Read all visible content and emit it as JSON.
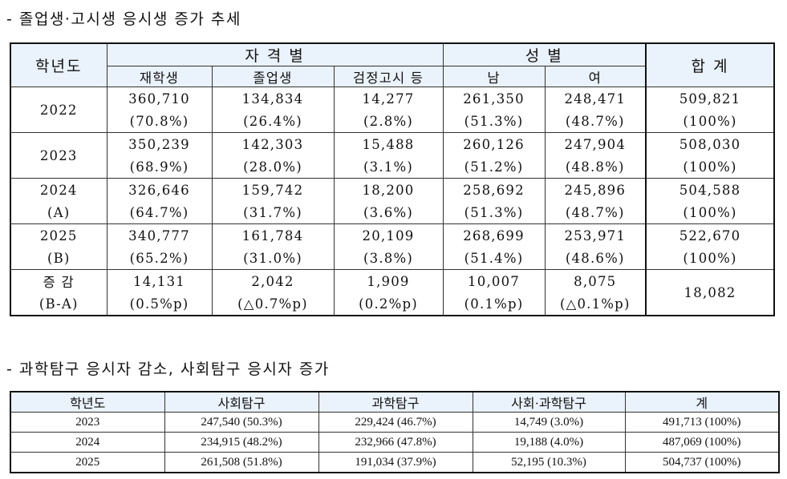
{
  "section1": {
    "heading": "- 졸업생·고시생 응시생 증가 추세",
    "headers": {
      "year": "학년도",
      "qualification_group": "자 격 별",
      "gender_group": "성 별",
      "total": "합 계",
      "sub": [
        "재학생",
        "졸업생",
        "검정고시 등",
        "남",
        "여"
      ]
    },
    "rows": [
      {
        "label1": "2022",
        "label2": "",
        "counts": [
          "360,710",
          "134,834",
          "14,277",
          "261,350",
          "248,471",
          "509,821"
        ],
        "ratios": [
          "(70.8%)",
          "(26.4%)",
          "(2.8%)",
          "(51.3%)",
          "(48.7%)",
          "(100%)"
        ]
      },
      {
        "label1": "2023",
        "label2": "",
        "counts": [
          "350,239",
          "142,303",
          "15,488",
          "260,126",
          "247,904",
          "508,030"
        ],
        "ratios": [
          "(68.9%)",
          "(28.0%)",
          "(3.1%)",
          "(51.2%)",
          "(48.8%)",
          "(100%)"
        ]
      },
      {
        "label1": "2024",
        "label2": "(A)",
        "counts": [
          "326,646",
          "159,742",
          "18,200",
          "258,692",
          "245,896",
          "504,588"
        ],
        "ratios": [
          "(64.7%)",
          "(31.7%)",
          "(3.6%)",
          "(51.3%)",
          "(48.7%)",
          "(100%)"
        ]
      },
      {
        "label1": "2025",
        "label2": "(B)",
        "counts": [
          "340,777",
          "161,784",
          "20,109",
          "268,699",
          "253,971",
          "522,670"
        ],
        "ratios": [
          "(65.2%)",
          "(31.0%)",
          "(3.8%)",
          "(51.4%)",
          "(48.6%)",
          "(100%)"
        ]
      }
    ],
    "change_row": {
      "label1": "증 감",
      "label2": "(B-A)",
      "counts": [
        "14,131",
        "2,042",
        "1,909",
        "10,007",
        "8,075"
      ],
      "ratios": [
        "(0.5%p)",
        "(△0.7%p)",
        "(0.2%p)",
        "(0.1%p)",
        "(△0.1%p)"
      ],
      "total": "18,082"
    }
  },
  "section2": {
    "heading": "- 과학탐구 응시자 감소, 사회탐구 응시자 증가",
    "headers": [
      "학년도",
      "사회탐구",
      "과학탐구",
      "사회·과학탐구",
      "계"
    ],
    "rows": [
      [
        "2023",
        "247,540 (50.3%)",
        "229,424 (46.7%)",
        "14,749 (3.0%)",
        "491,713 (100%)"
      ],
      [
        "2024",
        "234,915 (48.2%)",
        "232,966 (47.8%)",
        "19,188 (4.0%)",
        "487,069 (100%)"
      ],
      [
        "2025",
        "261,508 (51.8%)",
        "191,034 (37.9%)",
        "52,195 (10.3%)",
        "504,737 (100%)"
      ]
    ]
  }
}
